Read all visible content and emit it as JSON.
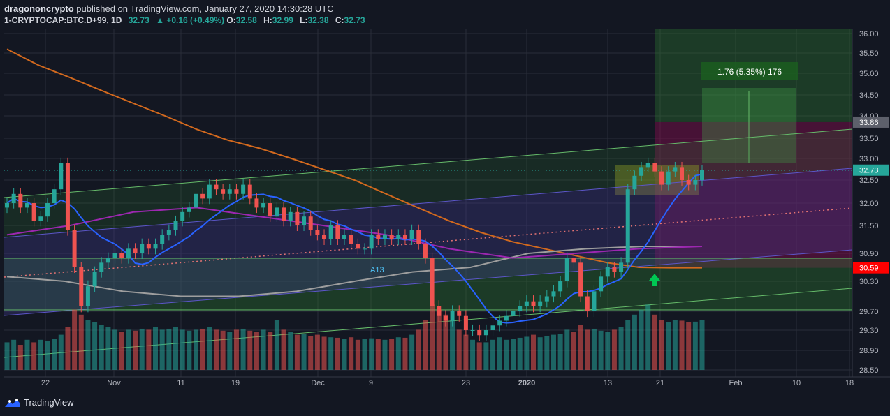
{
  "header": {
    "author": "dragononcrypto",
    "published": "published on TradingView.com, January 27, 2020 14:30:28 UTC",
    "symbol": "1-CRYPTOCAP:BTC.D+99, 1D",
    "last": "32.73",
    "arrow": "▲",
    "change": "+0.16 (+0.49%)",
    "o_label": "O:",
    "o": "32.58",
    "h_label": "H:",
    "h": "32.99",
    "l_label": "L:",
    "l": "32.38",
    "c_label": "C:",
    "c": "32.73"
  },
  "footer": {
    "brand": "TradingView",
    "brand_icon": "tradingview-logo-icon"
  },
  "colors": {
    "background": "#131722",
    "grid": "#2a2e39",
    "up": "#26a69a",
    "down": "#ef5350",
    "ma_orange": "#d2691e",
    "ma_purple": "#9c27b0",
    "ma_gray": "#9e9e9e",
    "ma_blue": "#2962ff",
    "green_zone": "#2e7d32",
    "red_zone": "#880e4f",
    "channel_violet": "#3f3a8a",
    "channel_green": "#66bb6a"
  },
  "chart_data": {
    "type": "candlestick",
    "ylim": [
      28.5,
      36.0
    ],
    "y_ticks": [
      "36.00",
      "35.50",
      "35.00",
      "34.50",
      "34.00",
      "33.50",
      "33.00",
      "32.50",
      "32.00",
      "31.50",
      "30.90",
      "30.30",
      "29.70",
      "29.30",
      "28.90",
      "28.50"
    ],
    "x_ticks": [
      "22",
      "Nov",
      "11",
      "19",
      "Dec",
      "9",
      "23",
      "2020",
      "13",
      "21",
      "Feb",
      "10",
      "18"
    ],
    "price_labels": {
      "resistance": "33.86",
      "last": "32.73",
      "support": "30.59"
    },
    "position_label": "1.76 (5.35%) 176",
    "marker_text": "A13",
    "closes": [
      32.0,
      32.2,
      31.9,
      32.0,
      31.6,
      31.7,
      32.0,
      32.3,
      32.9,
      31.4,
      30.6,
      29.8,
      30.2,
      30.5,
      30.7,
      30.8,
      30.9,
      30.8,
      31.0,
      30.9,
      31.1,
      31.0,
      31.1,
      31.3,
      31.4,
      31.6,
      31.8,
      31.9,
      32.2,
      32.1,
      32.4,
      32.3,
      32.2,
      32.3,
      32.2,
      32.4,
      32.1,
      31.9,
      32.0,
      31.7,
      31.9,
      31.6,
      31.8,
      31.5,
      31.7,
      31.4,
      31.3,
      31.2,
      31.5,
      31.2,
      31.3,
      31.1,
      31.0,
      31.0,
      31.3,
      31.2,
      31.3,
      31.2,
      31.3,
      31.2,
      31.4,
      31.1,
      30.8,
      29.8,
      29.6,
      29.5,
      29.7,
      29.6,
      29.3,
      29.3,
      29.2,
      29.3,
      29.4,
      29.5,
      29.6,
      29.7,
      29.8,
      29.9,
      29.8,
      29.9,
      30.0,
      30.1,
      30.3,
      30.8,
      30.7,
      30.0,
      29.7,
      30.1,
      30.4,
      30.6,
      30.5,
      30.7,
      32.3,
      32.6,
      32.8,
      32.9,
      32.7,
      32.4,
      32.7,
      32.8,
      32.5,
      32.4,
      32.5,
      32.73
    ],
    "volumes": [
      0.55,
      0.6,
      0.5,
      0.6,
      0.55,
      0.6,
      0.58,
      0.62,
      0.7,
      0.85,
      1.2,
      1.1,
      1.0,
      0.95,
      0.9,
      0.85,
      0.8,
      0.75,
      0.8,
      0.78,
      0.82,
      0.8,
      0.85,
      0.8,
      0.82,
      0.85,
      0.8,
      0.78,
      0.8,
      0.82,
      0.85,
      0.8,
      0.78,
      0.75,
      0.8,
      0.82,
      0.78,
      0.75,
      0.8,
      0.76,
      1.0,
      0.8,
      0.75,
      0.7,
      0.72,
      0.68,
      0.7,
      0.66,
      0.65,
      0.64,
      0.62,
      0.65,
      0.6,
      0.62,
      0.63,
      0.62,
      0.6,
      0.62,
      0.65,
      0.64,
      0.7,
      0.8,
      1.0,
      1.3,
      1.2,
      1.1,
      1.0,
      0.8,
      0.7,
      0.6,
      0.55,
      0.55,
      0.6,
      0.65,
      0.6,
      0.62,
      0.64,
      0.66,
      0.7,
      0.65,
      0.68,
      0.7,
      0.72,
      0.8,
      0.75,
      0.9,
      0.8,
      0.82,
      0.78,
      0.76,
      0.8,
      0.85,
      1.0,
      1.1,
      1.2,
      1.3,
      1.1,
      1.0,
      0.95,
      1.0,
      0.98,
      0.95,
      0.96,
      1.0
    ],
    "ma_orange": [
      35.6,
      35.2,
      34.9,
      34.6,
      34.3,
      34.0,
      33.7,
      33.45,
      33.25,
      33.0,
      32.75,
      32.5,
      32.2,
      31.9,
      31.6,
      31.35,
      31.15,
      31.0,
      30.85,
      30.7,
      30.6,
      30.59,
      30.59
    ],
    "ma_purple": [
      31.3,
      31.5,
      31.8,
      31.9,
      31.7,
      31.5,
      31.3,
      31.0,
      30.8,
      30.9,
      31.0,
      31.05
    ],
    "ma_gray": [
      30.4,
      30.3,
      30.1,
      30.0,
      30.0,
      30.1,
      30.3,
      30.5,
      30.6,
      30.9,
      31.0,
      31.05,
      31.05
    ],
    "series": [
      {
        "name": "",
        "values": []
      }
    ]
  }
}
